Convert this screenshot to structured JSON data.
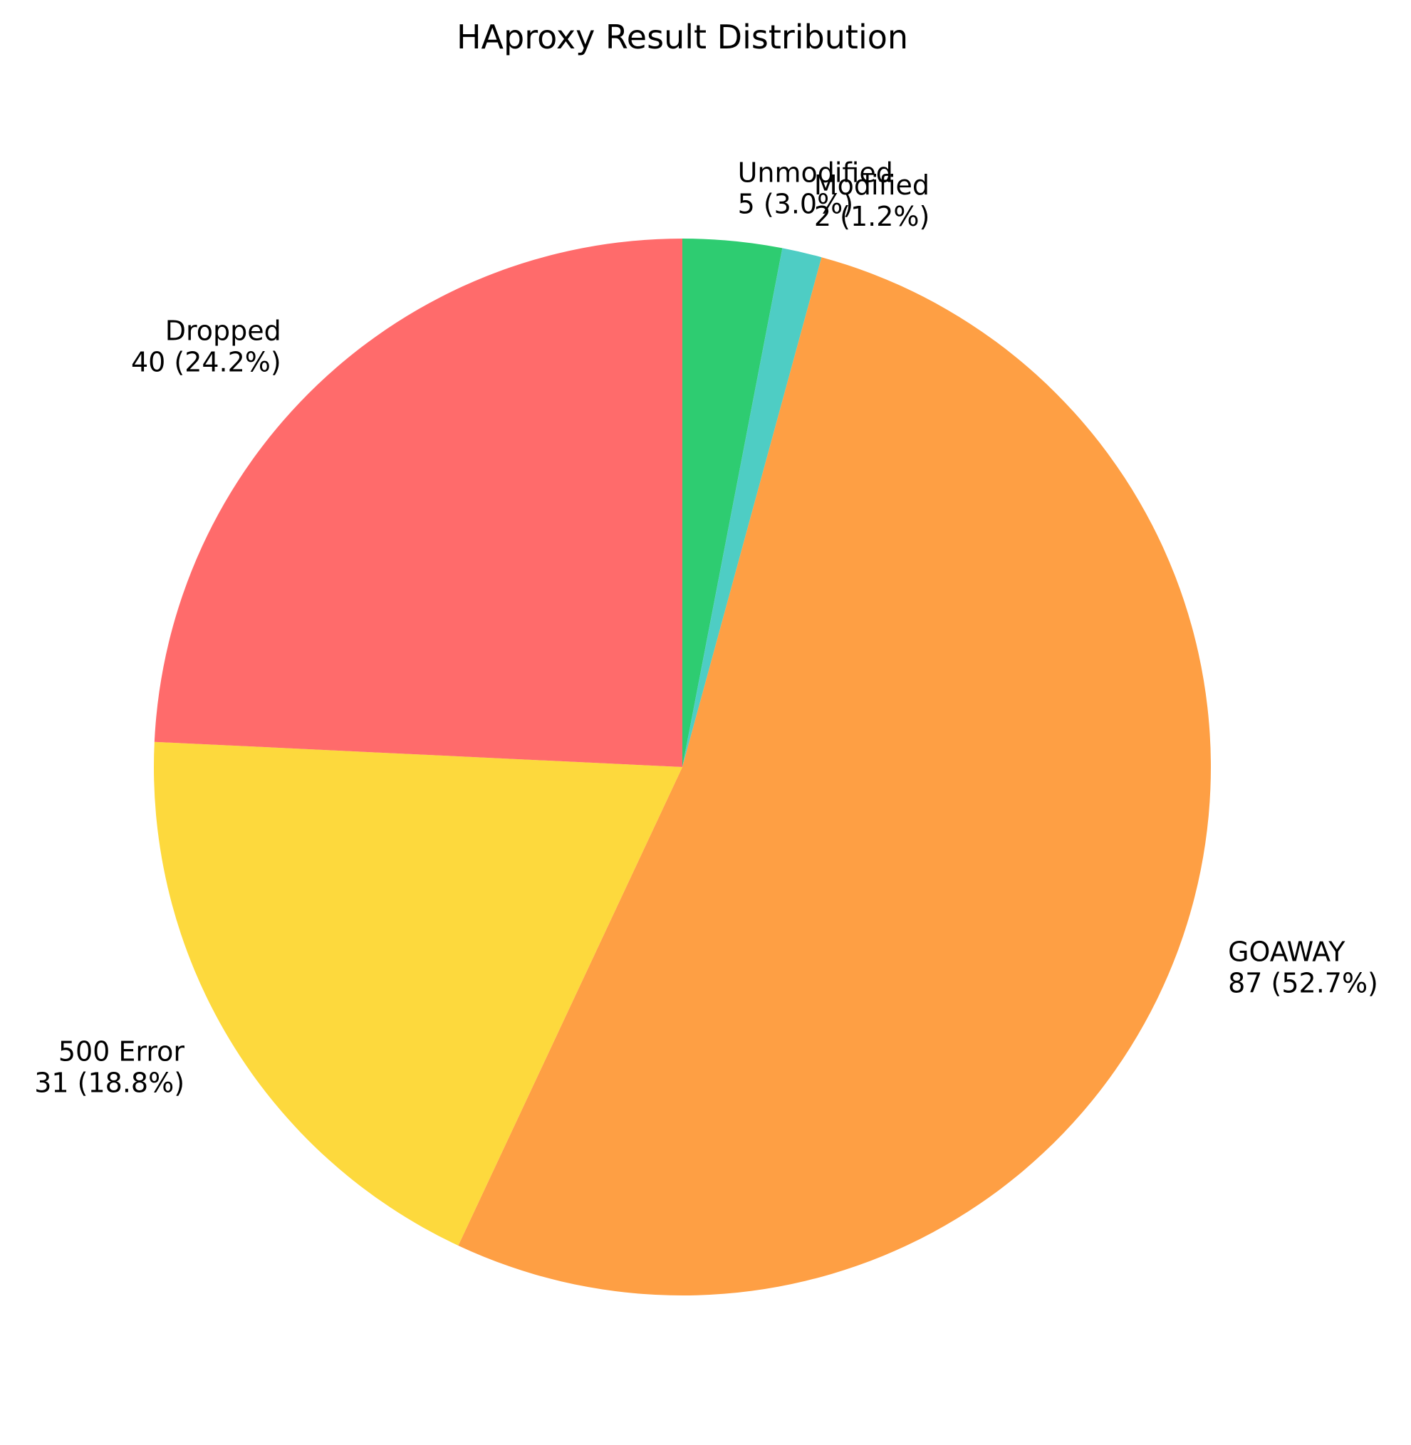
{
  "chart_data": {
    "type": "pie",
    "title": "HAproxy Result Distribution",
    "start_angle": 90,
    "direction": "clockwise",
    "slices": [
      {
        "label": "Unmodified",
        "value": 5,
        "percent_text": "5 (3.0%)",
        "color": "#2ecc71"
      },
      {
        "label": "Modified",
        "value": 2,
        "percent_text": "2 (1.2%)",
        "color": "#4ecdc4"
      },
      {
        "label": "GOAWAY",
        "value": 87,
        "percent_text": "87 (52.7%)",
        "color": "#fe9f44"
      },
      {
        "label": "500 Error",
        "value": 31,
        "percent_text": "31 (18.8%)",
        "color": "#fdd93d"
      },
      {
        "label": "Dropped",
        "value": 40,
        "percent_text": "40 (24.2%)",
        "color": "#ff6b6b"
      }
    ]
  }
}
